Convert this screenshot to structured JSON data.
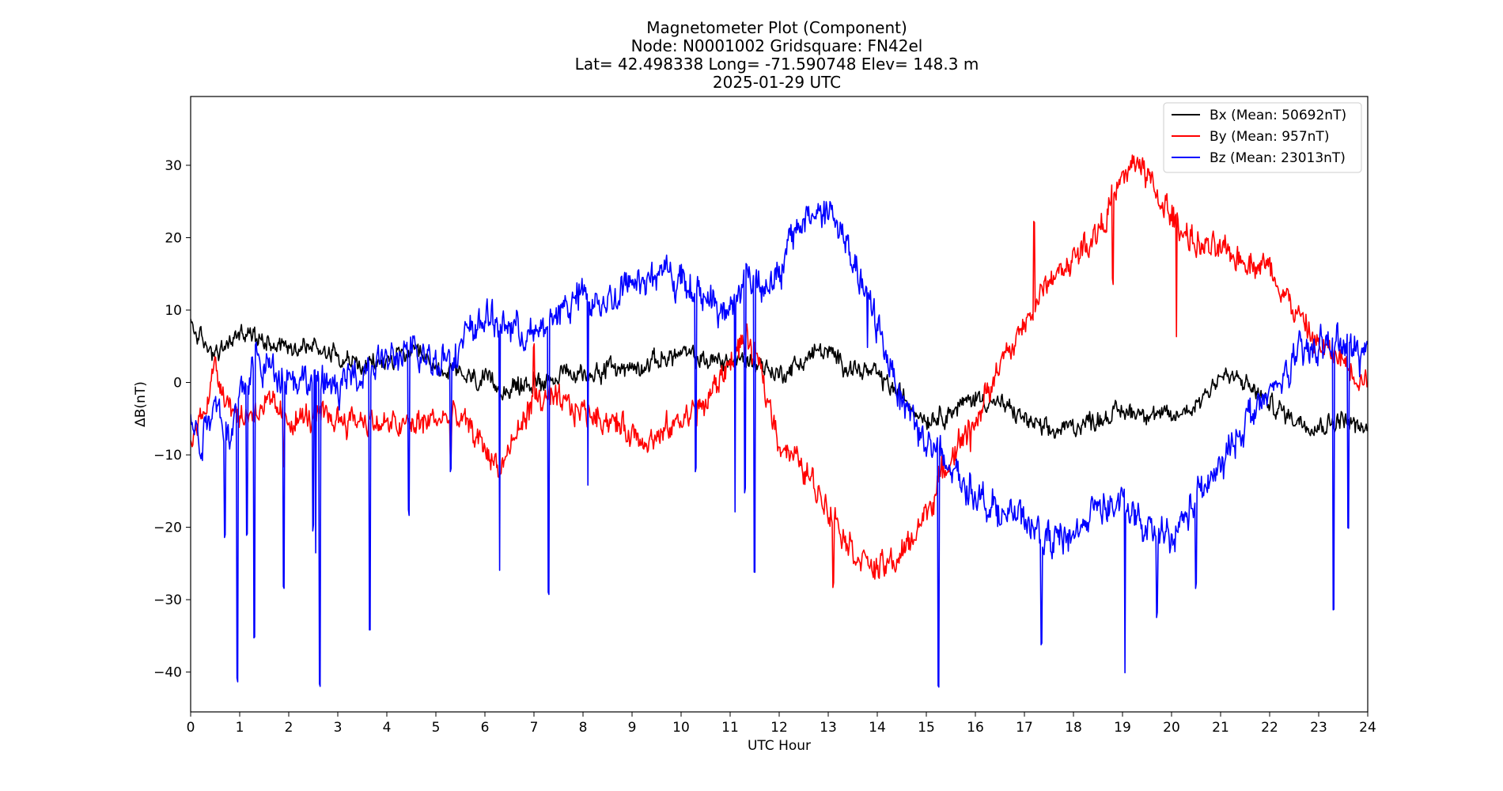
{
  "chart_data": {
    "type": "line",
    "title_lines": [
      "Magnetometer Plot (Component)",
      "Node:  N0001002     Gridsquare:  FN42el",
      "Lat= 42.498338    Long= -71.590748    Elev= 148.3 m",
      "2025-01-29  UTC"
    ],
    "xlabel": "UTC Hour",
    "ylabel": "ΔB(nT)",
    "xlim": [
      0,
      24
    ],
    "ylim": [
      -45.5,
      39.5
    ],
    "x_ticks": [
      0,
      1,
      2,
      3,
      4,
      5,
      6,
      7,
      8,
      9,
      10,
      11,
      12,
      13,
      14,
      15,
      16,
      17,
      18,
      19,
      20,
      21,
      22,
      23,
      24
    ],
    "y_ticks": [
      -40,
      -30,
      -20,
      -10,
      0,
      10,
      20,
      30
    ],
    "y_tick_labels": [
      "−40",
      "−30",
      "−20",
      "−10",
      "0",
      "10",
      "20",
      "30"
    ],
    "grid": false,
    "legend_position": "top-right",
    "series": [
      {
        "name": "Bx (Mean: 50692nT)",
        "color": "#000000",
        "noise": 1.1,
        "x": [
          0,
          0.3,
          0.6,
          1,
          1.5,
          2,
          2.5,
          3,
          3.5,
          4,
          4.5,
          5,
          5.5,
          6,
          6.5,
          7,
          7.5,
          8,
          8.5,
          9,
          9.5,
          10,
          10.5,
          11,
          11.5,
          12,
          12.5,
          12.8,
          13,
          13.5,
          14,
          14.5,
          15,
          15.5,
          16,
          16.5,
          17,
          17.5,
          18,
          18.5,
          19,
          19.5,
          20,
          20.5,
          21,
          21.5,
          22,
          22.5,
          23,
          23.5,
          24
        ],
        "y": [
          8,
          5,
          4,
          7,
          6,
          5,
          5,
          4,
          2,
          3,
          4,
          2,
          1,
          0,
          -1,
          0,
          1,
          1,
          2,
          2,
          3,
          4,
          3,
          3,
          3,
          1,
          3,
          4.5,
          4,
          2,
          1,
          -2,
          -5,
          -4,
          -2,
          -3,
          -5,
          -7,
          -6,
          -5,
          -4,
          -4,
          -5,
          -3,
          1,
          0,
          -3,
          -5,
          -6,
          -5,
          -7
        ]
      },
      {
        "name": "By (Mean: 957nT)",
        "color": "#ff0000",
        "noise": 1.6,
        "spikes": [
          [
            0.8,
            -2
          ],
          [
            1.9,
            -12
          ],
          [
            5.3,
            -10
          ],
          [
            7.0,
            5
          ],
          [
            11.3,
            4
          ],
          [
            13.1,
            -28
          ],
          [
            15.9,
            -10
          ],
          [
            17.2,
            22
          ],
          [
            18.8,
            14
          ],
          [
            20.1,
            6
          ]
        ],
        "x": [
          0,
          0.2,
          0.5,
          0.8,
          1,
          1.5,
          2,
          2.5,
          3,
          3.5,
          4,
          4.5,
          5,
          5.5,
          6,
          6.3,
          6.6,
          7,
          7.5,
          8,
          8.5,
          9,
          9.5,
          10,
          10.5,
          11,
          11.3,
          11.6,
          12,
          12.5,
          13,
          13.5,
          14,
          14.5,
          15,
          15.5,
          16,
          16.5,
          17,
          17.5,
          18,
          18.5,
          19,
          19.3,
          19.6,
          20,
          20.5,
          21,
          21.5,
          22,
          22.5,
          23,
          23.5,
          24
        ],
        "y": [
          -8,
          -5,
          2,
          -3,
          -5,
          -3,
          -5,
          -5,
          -5,
          -5,
          -6,
          -6,
          -5,
          -5,
          -9,
          -12,
          -8,
          -2,
          -3,
          -4,
          -5,
          -7,
          -8,
          -5,
          -3,
          3,
          6,
          2,
          -8,
          -12,
          -17,
          -23,
          -26,
          -24,
          -18,
          -10,
          -5,
          2,
          8,
          14,
          17,
          21,
          28,
          31,
          27,
          23,
          19,
          18,
          17,
          16,
          10,
          5,
          3,
          0
        ]
      },
      {
        "name": "Bz (Mean: 23013nT)",
        "color": "#0000ff",
        "noise": 2.0,
        "spikes": [
          [
            0.7,
            -21
          ],
          [
            0.95,
            -41
          ],
          [
            1.15,
            -21
          ],
          [
            1.3,
            -35
          ],
          [
            1.9,
            -28
          ],
          [
            2.5,
            -20
          ],
          [
            2.55,
            -24
          ],
          [
            2.63,
            -41.5
          ],
          [
            3.65,
            -34
          ],
          [
            4.45,
            -18
          ],
          [
            5.3,
            -12
          ],
          [
            6.3,
            -26
          ],
          [
            7.3,
            -29
          ],
          [
            8.1,
            -14
          ],
          [
            10.3,
            -12
          ],
          [
            11.1,
            -18
          ],
          [
            11.3,
            -15
          ],
          [
            11.5,
            -26
          ],
          [
            13.8,
            5
          ],
          [
            15.25,
            -42
          ],
          [
            17.35,
            -36
          ],
          [
            19.05,
            -40
          ],
          [
            19.7,
            -32
          ],
          [
            20.5,
            -28
          ],
          [
            23.3,
            -31
          ],
          [
            23.6,
            -20
          ]
        ],
        "x": [
          0,
          0.2,
          0.5,
          0.8,
          1,
          1.3,
          1.6,
          2,
          2.5,
          3,
          3.5,
          4,
          4.5,
          5,
          5.5,
          6,
          6.5,
          7,
          7.5,
          8,
          8.5,
          9,
          9.5,
          10,
          10.5,
          11,
          11.3,
          11.6,
          12,
          12.3,
          12.6,
          13,
          13.3,
          13.6,
          14,
          14.5,
          15,
          15.5,
          16,
          16.5,
          17,
          17.5,
          18,
          18.5,
          19,
          19.5,
          20,
          20.5,
          21,
          21.5,
          22,
          22.5,
          23,
          23.5,
          24
        ],
        "y": [
          -5,
          -8,
          -2,
          -8,
          -2,
          3,
          2,
          1,
          0,
          -1,
          2,
          3,
          4,
          3,
          5,
          9,
          8,
          6,
          10,
          12,
          11,
          14,
          15,
          14,
          12,
          9,
          15,
          14,
          14,
          21,
          23,
          24,
          20,
          15,
          8,
          -2,
          -8,
          -12,
          -15,
          -18,
          -19,
          -22,
          -21,
          -17,
          -17,
          -21,
          -22,
          -16,
          -12,
          -5,
          -2,
          3,
          5,
          5,
          4
        ]
      }
    ]
  }
}
